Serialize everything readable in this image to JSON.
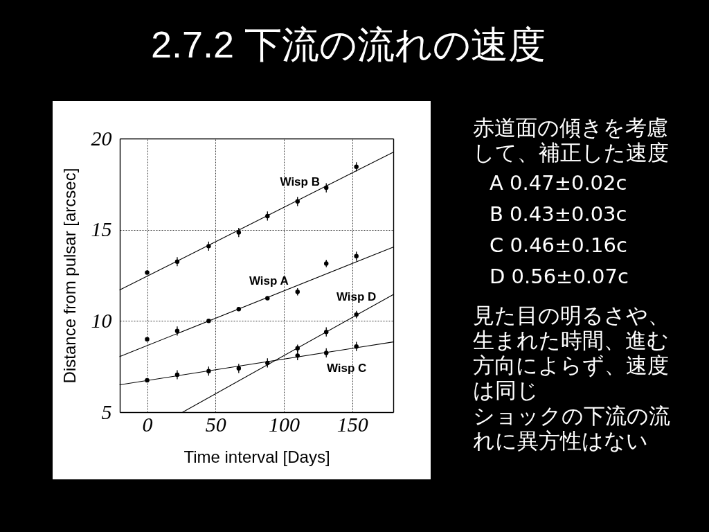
{
  "chart_data": [
    {
      "type": "scatter",
      "title": "2.7.2 下流の流れの速度",
      "xlabel": "Time interval [Days]",
      "ylabel": "Distance from pulsar [arcsec]",
      "xlim": [
        -20,
        180
      ],
      "ylim": [
        5,
        20
      ],
      "xticks": [
        0,
        50,
        100,
        150
      ],
      "yticks": [
        5,
        10,
        15,
        20
      ],
      "grid": true,
      "series": [
        {
          "type": "line",
          "color": "#000000",
          "marker": "none",
          "x": [
            -20,
            180
          ],
          "values": [
            11.7,
            19.25
          ]
        },
        {
          "type": "line",
          "color": "#000000",
          "marker": "none",
          "x": [
            -20,
            180
          ],
          "values": [
            8.05,
            14.05
          ]
        },
        {
          "type": "line",
          "color": "#000000",
          "marker": "none",
          "x": [
            -20,
            180
          ],
          "values": [
            6.5,
            8.85
          ]
        },
        {
          "type": "line",
          "color": "#000000",
          "marker": "none",
          "x": [
            26,
            180
          ],
          "values": [
            5,
            11.45
          ]
        },
        {
          "type": "scatter",
          "name": "Wisp B",
          "color": "#000000",
          "marker": "circle",
          "x": [
            0,
            22,
            45,
            67,
            88,
            110,
            131,
            153
          ],
          "values": [
            12.65,
            13.25,
            14.1,
            14.85,
            15.75,
            16.55,
            17.3,
            18.45
          ],
          "errors": [
            null,
            0.25,
            0.25,
            0.25,
            0.25,
            0.25,
            0.25,
            0.25
          ]
        },
        {
          "type": "scatter",
          "name": "Wisp A",
          "color": "#000000",
          "marker": "circle",
          "x": [
            0,
            22,
            45,
            67,
            88,
            110,
            131,
            153
          ],
          "values": [
            9.0,
            9.45,
            10.0,
            10.65,
            11.25,
            11.6,
            13.15,
            13.55
          ],
          "errors": [
            null,
            0.25,
            null,
            null,
            null,
            0.2,
            0.2,
            0.25
          ]
        },
        {
          "type": "scatter",
          "name": "Wisp C",
          "color": "#000000",
          "marker": "circle",
          "x": [
            0,
            22,
            45,
            67,
            88,
            110,
            131,
            153
          ],
          "values": [
            6.75,
            7.05,
            7.25,
            7.4,
            7.7,
            8.1,
            8.25,
            8.6
          ],
          "errors": [
            null,
            0.25,
            0.25,
            0.25,
            0.25,
            0.25,
            0.25,
            0.25
          ]
        },
        {
          "type": "scatter",
          "name": "Wisp D",
          "color": "#000000",
          "marker": "circle",
          "x": [
            110,
            131,
            153
          ],
          "values": [
            8.5,
            9.4,
            10.35
          ],
          "errors": [
            0.2,
            0.25,
            0.2
          ]
        }
      ]
    },
    {
      "type": "other",
      "annotations": [
        "赤道面の傾きを考慮して、補正した速度",
        "A 0.47±0.02c",
        "B 0.43±0.03c",
        "C 0.46±0.16c",
        "D 0.56±0.07c",
        "見た目の明るさや、生まれた時間、進む方向によらず、速度は同じ",
        "ショックの下流の流れに異方性はない"
      ]
    }
  ]
}
